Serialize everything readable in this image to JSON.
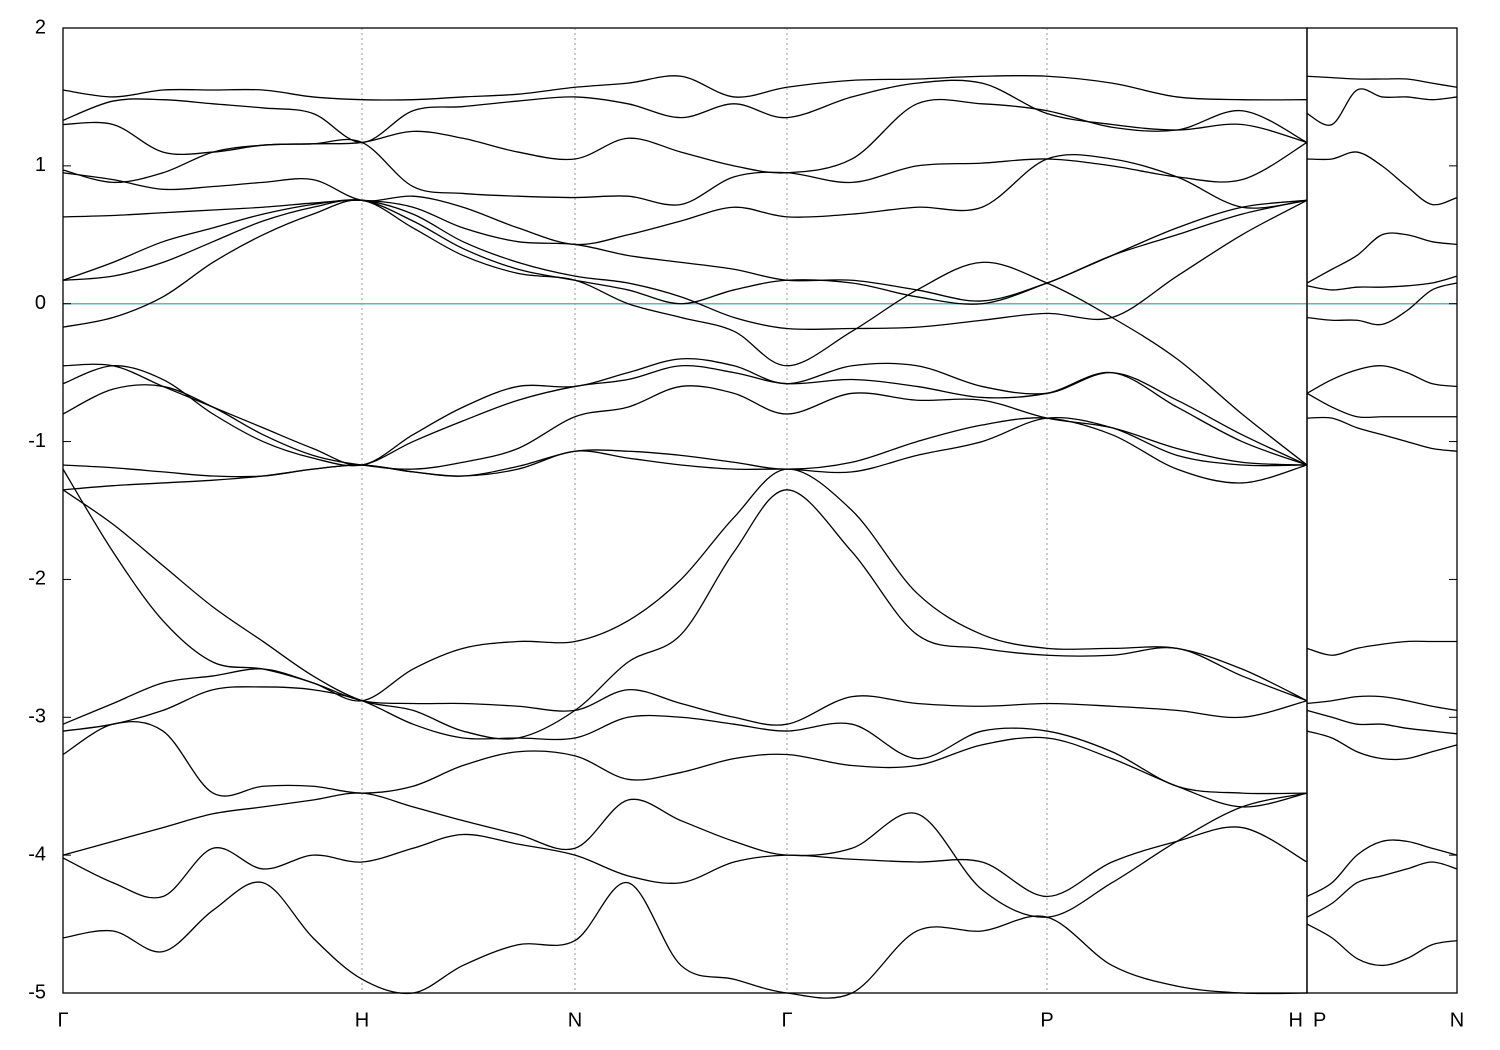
{
  "chart_data": [
    {
      "type": "line",
      "x": [
        0,
        50,
        100,
        150,
        200,
        250,
        299,
        350,
        400,
        455,
        512,
        565,
        618,
        671,
        724,
        789,
        854,
        919,
        984,
        1049,
        1114,
        1179,
        1244
      ],
      "xlim": [
        0,
        1244
      ],
      "xticks": [
        {
          "value": 0,
          "label": "Γ"
        },
        {
          "value": 299,
          "label": "H"
        },
        {
          "value": 512,
          "label": "N"
        },
        {
          "value": 724,
          "label": "Γ"
        },
        {
          "value": 984,
          "label": "P"
        },
        {
          "value": 1244,
          "label": "H"
        }
      ],
      "ylim": [
        -5,
        2
      ],
      "yticks": [
        2,
        1,
        0,
        -1,
        -2,
        -3,
        -4,
        -5
      ],
      "ytick_side": "left",
      "show_ytick_labels": true,
      "xgrid": true,
      "color": "#000000",
      "fermi_level": {
        "value": 0,
        "color": "#5fb4c8"
      },
      "series": [
        {
          "values": [
            1.55,
            1.5,
            1.55,
            1.55,
            1.55,
            1.5,
            1.48,
            1.48,
            1.5,
            1.52,
            1.57,
            1.6,
            1.65,
            1.5,
            1.57,
            1.62,
            1.63,
            1.65,
            1.65,
            1.6,
            1.5,
            1.48,
            1.48
          ]
        },
        {
          "values": [
            1.33,
            1.47,
            1.48,
            1.45,
            1.42,
            1.38,
            1.17,
            1.4,
            1.43,
            1.47,
            1.5,
            1.45,
            1.35,
            1.45,
            1.35,
            1.5,
            1.6,
            1.6,
            1.38,
            1.3,
            1.26,
            1.3,
            1.17
          ]
        },
        {
          "values": [
            1.3,
            1.3,
            1.1,
            1.1,
            1.15,
            1.16,
            1.17,
            1.25,
            1.2,
            1.1,
            1.05,
            1.2,
            1.1,
            1.0,
            0.95,
            1.05,
            1.45,
            1.45,
            1.4,
            1.28,
            1.26,
            1.4,
            1.17
          ]
        },
        {
          "values": [
            0.97,
            0.88,
            0.95,
            1.1,
            1.15,
            1.16,
            1.17,
            0.85,
            0.8,
            0.78,
            0.77,
            0.78,
            0.72,
            0.92,
            0.95,
            0.88,
            1.0,
            1.02,
            1.05,
            1.0,
            0.92,
            0.9,
            1.17
          ]
        },
        {
          "values": [
            0.95,
            0.9,
            0.83,
            0.85,
            0.88,
            0.9,
            0.75,
            0.78,
            0.7,
            0.55,
            0.43,
            0.5,
            0.6,
            0.7,
            0.63,
            0.65,
            0.7,
            0.7,
            1.05,
            1.05,
            0.92,
            0.7,
            0.75
          ]
        },
        {
          "values": [
            0.63,
            0.64,
            0.66,
            0.68,
            0.7,
            0.73,
            0.75,
            0.7,
            0.55,
            0.45,
            0.43,
            0.35,
            0.3,
            0.25,
            0.17,
            0.17,
            0.1,
            0.02,
            0.15,
            0.35,
            0.5,
            0.65,
            0.75
          ]
        },
        {
          "values": [
            0.17,
            0.3,
            0.45,
            0.55,
            0.65,
            0.72,
            0.75,
            0.65,
            0.45,
            0.3,
            0.2,
            0.15,
            0.05,
            -0.1,
            -0.18,
            -0.18,
            -0.17,
            -0.12,
            -0.07,
            -0.1,
            0.2,
            0.5,
            0.75
          ]
        },
        {
          "values": [
            0.17,
            0.2,
            0.3,
            0.45,
            0.6,
            0.7,
            0.75,
            0.6,
            0.4,
            0.25,
            0.17,
            0.1,
            0.0,
            0.1,
            0.17,
            0.15,
            0.05,
            0.0,
            0.15,
            0.35,
            0.55,
            0.7,
            0.75
          ]
        },
        {
          "values": [
            -0.17,
            -0.1,
            0.05,
            0.3,
            0.5,
            0.65,
            0.75,
            0.55,
            0.35,
            0.22,
            0.17,
            0.0,
            -0.1,
            -0.2,
            -0.45,
            -0.2,
            0.1,
            0.3,
            0.15,
            -0.1,
            -0.4,
            -0.8,
            -1.17
          ]
        },
        {
          "values": [
            -0.45,
            -0.45,
            -0.6,
            -0.75,
            -0.9,
            -1.05,
            -1.17,
            -0.95,
            -0.75,
            -0.6,
            -0.6,
            -0.5,
            -0.4,
            -0.45,
            -0.58,
            -0.45,
            -0.45,
            -0.6,
            -0.65,
            -0.5,
            -0.7,
            -0.95,
            -1.17
          ]
        },
        {
          "values": [
            -0.58,
            -0.45,
            -0.55,
            -0.8,
            -1.0,
            -1.12,
            -1.17,
            -1.0,
            -0.85,
            -0.7,
            -0.6,
            -0.55,
            -0.45,
            -0.5,
            -0.58,
            -0.55,
            -0.6,
            -0.68,
            -0.65,
            -0.5,
            -0.75,
            -1.0,
            -1.17
          ]
        },
        {
          "values": [
            -0.8,
            -0.62,
            -0.6,
            -0.75,
            -0.95,
            -1.1,
            -1.17,
            -1.2,
            -1.15,
            -1.05,
            -0.82,
            -0.75,
            -0.6,
            -0.65,
            -0.8,
            -0.65,
            -0.7,
            -0.7,
            -0.83,
            -0.9,
            -1.05,
            -1.15,
            -1.17
          ]
        },
        {
          "values": [
            -1.17,
            -1.19,
            -1.22,
            -1.25,
            -1.25,
            -1.2,
            -1.17,
            -1.22,
            -1.25,
            -1.18,
            -1.07,
            -1.07,
            -1.1,
            -1.15,
            -1.2,
            -1.15,
            -1.0,
            -0.88,
            -0.83,
            -0.95,
            -1.2,
            -1.3,
            -1.17
          ]
        },
        {
          "values": [
            -1.35,
            -1.32,
            -1.3,
            -1.28,
            -1.25,
            -1.2,
            -1.17,
            -1.22,
            -1.25,
            -1.2,
            -1.07,
            -1.12,
            -1.17,
            -1.2,
            -1.2,
            -1.22,
            -1.1,
            -1.0,
            -0.83,
            -0.9,
            -1.1,
            -1.17,
            -1.17
          ]
        },
        {
          "values": [
            -1.2,
            -1.8,
            -2.3,
            -2.6,
            -2.65,
            -2.75,
            -2.88,
            -2.65,
            -2.5,
            -2.45,
            -2.45,
            -2.3,
            -2.0,
            -1.55,
            -1.2,
            -1.5,
            -2.1,
            -2.4,
            -2.5,
            -2.5,
            -2.5,
            -2.65,
            -2.88
          ]
        },
        {
          "values": [
            -1.35,
            -1.6,
            -1.9,
            -2.2,
            -2.45,
            -2.7,
            -2.88,
            -2.95,
            -3.1,
            -3.15,
            -2.95,
            -2.6,
            -2.4,
            -1.8,
            -1.35,
            -1.8,
            -2.4,
            -2.5,
            -2.55,
            -2.55,
            -2.5,
            -2.7,
            -2.88
          ]
        },
        {
          "values": [
            -3.05,
            -2.9,
            -2.75,
            -2.7,
            -2.65,
            -2.75,
            -2.88,
            -2.9,
            -2.9,
            -2.92,
            -2.95,
            -2.8,
            -2.9,
            -3.0,
            -3.05,
            -2.85,
            -2.9,
            -2.92,
            -2.9,
            -2.92,
            -2.95,
            -3.0,
            -2.88
          ]
        },
        {
          "values": [
            -3.1,
            -3.05,
            -2.95,
            -2.8,
            -2.78,
            -2.8,
            -2.88,
            -3.05,
            -3.15,
            -3.15,
            -3.15,
            -3.0,
            -3.0,
            -3.05,
            -3.1,
            -3.05,
            -3.3,
            -3.1,
            -3.1,
            -3.25,
            -3.5,
            -3.55,
            -3.55
          ]
        },
        {
          "values": [
            -3.27,
            -3.05,
            -3.1,
            -3.55,
            -3.5,
            -3.5,
            -3.55,
            -3.5,
            -3.35,
            -3.25,
            -3.28,
            -3.45,
            -3.4,
            -3.3,
            -3.27,
            -3.35,
            -3.35,
            -3.2,
            -3.15,
            -3.3,
            -3.5,
            -3.65,
            -3.55
          ]
        },
        {
          "values": [
            -4.0,
            -3.9,
            -3.8,
            -3.7,
            -3.65,
            -3.6,
            -3.55,
            -3.65,
            -3.75,
            -3.85,
            -3.95,
            -3.6,
            -3.75,
            -3.9,
            -4.0,
            -3.95,
            -3.7,
            -4.25,
            -4.45,
            -4.2,
            -3.9,
            -3.65,
            -3.55
          ]
        },
        {
          "values": [
            -4.02,
            -4.2,
            -4.3,
            -3.95,
            -4.1,
            -4.0,
            -4.05,
            -3.95,
            -3.85,
            -3.92,
            -4.0,
            -4.15,
            -4.2,
            -4.05,
            -4.0,
            -4.03,
            -4.05,
            -4.05,
            -4.3,
            -4.05,
            -3.9,
            -3.8,
            -4.05
          ]
        },
        {
          "values": [
            -4.6,
            -4.55,
            -4.7,
            -4.4,
            -4.2,
            -4.6,
            -4.9,
            -5.0,
            -4.8,
            -4.65,
            -4.62,
            -4.2,
            -4.8,
            -4.9,
            -5.0,
            -5.0,
            -4.55,
            -4.55,
            -4.45,
            -4.8,
            -4.95,
            -5.0,
            -5.0
          ]
        }
      ]
    },
    {
      "type": "line",
      "x": [
        0,
        25,
        50,
        75,
        100,
        125,
        150
      ],
      "xlim": [
        0,
        150
      ],
      "xticks": [
        {
          "value": 0,
          "label": "P"
        },
        {
          "value": 150,
          "label": "N"
        }
      ],
      "ylim": [
        -5,
        2
      ],
      "yticks": [
        2,
        1,
        0,
        -1,
        -2,
        -3,
        -4,
        -5
      ],
      "ytick_side": "right",
      "show_ytick_labels": false,
      "xgrid": true,
      "color": "#000000",
      "fermi_level": {
        "value": 0,
        "color": "#5fb4c8"
      },
      "series": [
        {
          "values": [
            1.65,
            1.64,
            1.63,
            1.63,
            1.63,
            1.6,
            1.57
          ]
        },
        {
          "values": [
            1.38,
            1.3,
            1.55,
            1.5,
            1.5,
            1.48,
            1.5
          ]
        },
        {
          "values": [
            1.05,
            1.05,
            1.1,
            1.0,
            0.85,
            0.72,
            0.77
          ]
        },
        {
          "values": [
            0.15,
            0.25,
            0.35,
            0.5,
            0.5,
            0.45,
            0.43
          ]
        },
        {
          "values": [
            0.13,
            0.1,
            0.12,
            0.12,
            0.13,
            0.15,
            0.2
          ]
        },
        {
          "values": [
            -0.1,
            -0.12,
            -0.12,
            -0.15,
            -0.05,
            0.1,
            0.15
          ]
        },
        {
          "values": [
            -0.65,
            -0.55,
            -0.48,
            -0.45,
            -0.5,
            -0.58,
            -0.6
          ]
        },
        {
          "values": [
            -0.65,
            -0.75,
            -0.82,
            -0.82,
            -0.82,
            -0.82,
            -0.82
          ]
        },
        {
          "values": [
            -0.83,
            -0.83,
            -0.9,
            -0.95,
            -1.0,
            -1.05,
            -1.07
          ]
        },
        {
          "values": [
            -2.5,
            -2.55,
            -2.5,
            -2.47,
            -2.45,
            -2.45,
            -2.45
          ]
        },
        {
          "values": [
            -2.9,
            -2.88,
            -2.85,
            -2.85,
            -2.88,
            -2.92,
            -2.95
          ]
        },
        {
          "values": [
            -2.95,
            -3.0,
            -3.05,
            -3.05,
            -3.08,
            -3.1,
            -3.12
          ]
        },
        {
          "values": [
            -3.1,
            -3.15,
            -3.25,
            -3.3,
            -3.3,
            -3.25,
            -3.2
          ]
        },
        {
          "values": [
            -4.3,
            -4.2,
            -4.0,
            -3.9,
            -3.9,
            -3.95,
            -4.0
          ]
        },
        {
          "values": [
            -4.45,
            -4.35,
            -4.2,
            -4.15,
            -4.1,
            -4.05,
            -4.1
          ]
        },
        {
          "values": [
            -4.5,
            -4.6,
            -4.75,
            -4.8,
            -4.75,
            -4.65,
            -4.62
          ]
        }
      ]
    }
  ]
}
